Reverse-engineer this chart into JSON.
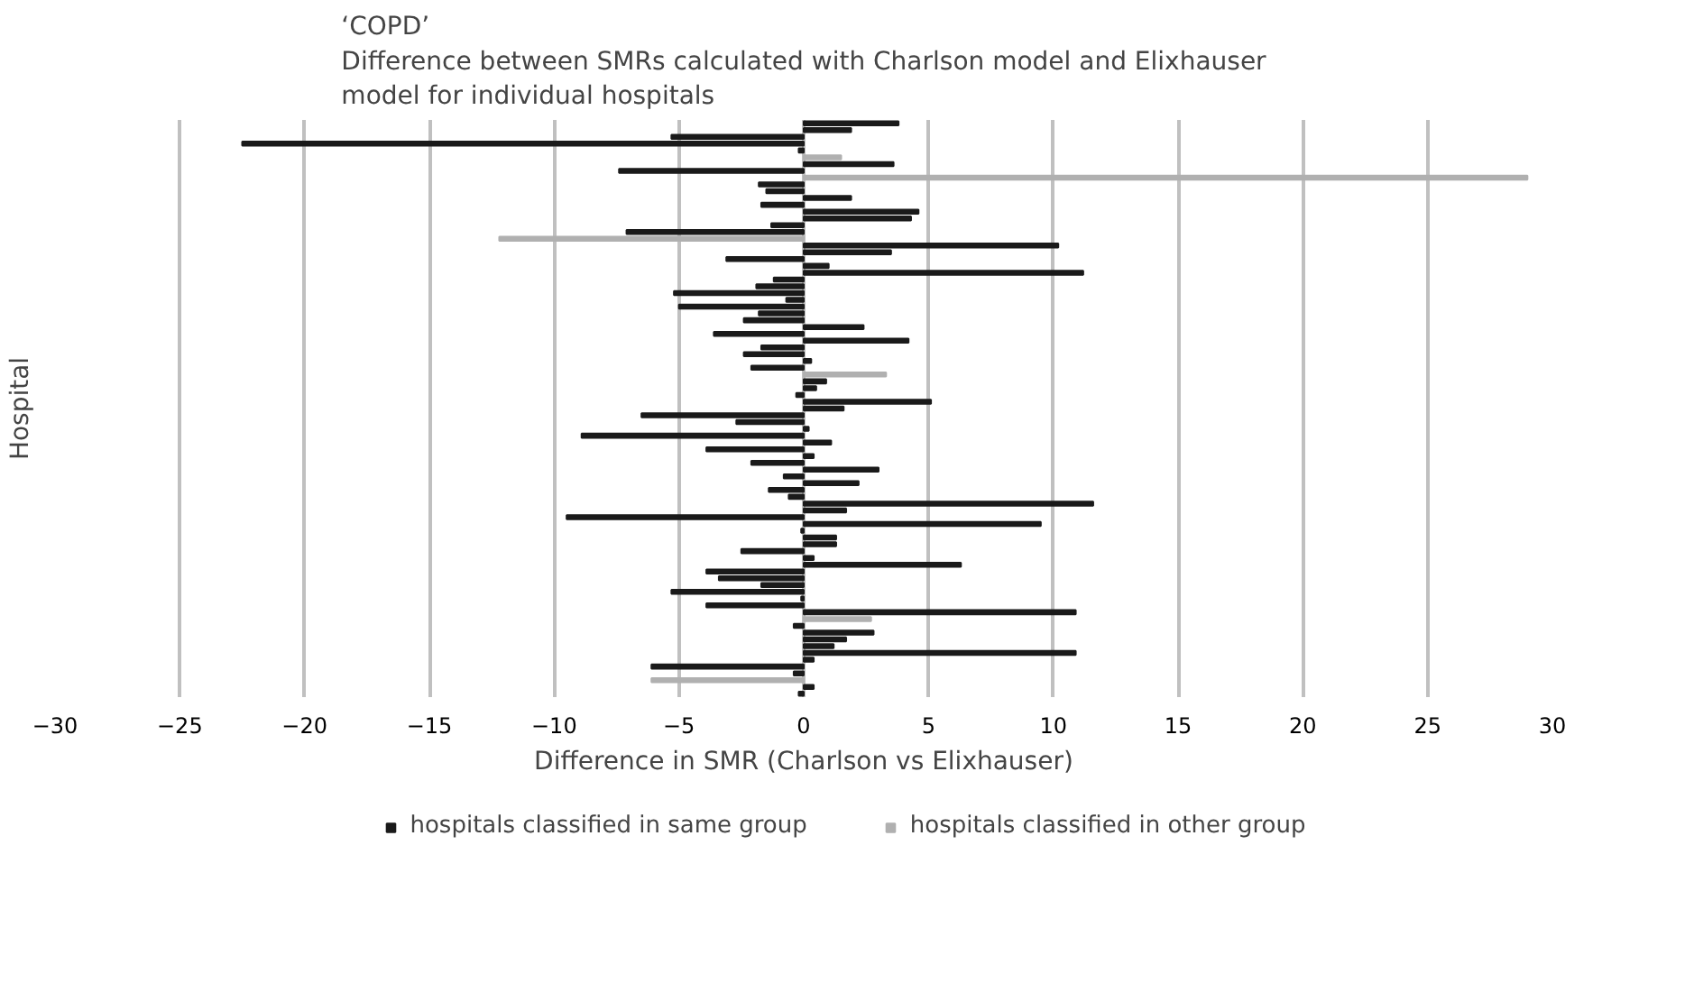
{
  "chart_data": {
    "type": "bar",
    "orientation": "horizontal",
    "title": "‘COPD’\nDifference between SMRs calculated with Charlson model and Elixhauser\nmodel for individual hospitals",
    "xlabel": "Difference in SMR (Charlson vs Elixhauser)",
    "ylabel": "Hospital",
    "categories": [
      null,
      null,
      null,
      null,
      null,
      null,
      null,
      null,
      null,
      null,
      null,
      null,
      null,
      null,
      null,
      null,
      null,
      null,
      null,
      null,
      null,
      null,
      null,
      null,
      null,
      null,
      null,
      null,
      null,
      null,
      null,
      null,
      null,
      null,
      null,
      null,
      null,
      null,
      null,
      null,
      null,
      null,
      null,
      null,
      null,
      null,
      null,
      null,
      null,
      null,
      null,
      null,
      null,
      null,
      null,
      null,
      null,
      null,
      null,
      null,
      null,
      null,
      null,
      null,
      null,
      null,
      null,
      null,
      null,
      null,
      null,
      null,
      null,
      null,
      null,
      null,
      null,
      null,
      null,
      null,
      null,
      null,
      null,
      null,
      null
    ],
    "series": [
      {
        "name": "hospitals classified in same group",
        "color": "#1a1a1a",
        "values": [
          3.8,
          1.9,
          -5.3,
          -22.5,
          -0.2,
          null,
          3.6,
          -7.4,
          null,
          -1.8,
          -1.5,
          1.9,
          -1.7,
          4.6,
          4.3,
          -1.3,
          -7.1,
          null,
          10.2,
          3.5,
          -3.1,
          1.0,
          11.2,
          -1.2,
          -1.9,
          -5.2,
          -0.7,
          -5.0,
          -1.8,
          -2.4,
          2.4,
          -3.6,
          4.2,
          -1.7,
          -2.4,
          0.3,
          -2.1,
          null,
          0.9,
          0.5,
          -0.3,
          5.1,
          1.6,
          -6.5,
          -2.7,
          0.2,
          -8.9,
          1.1,
          -3.9,
          0.4,
          -2.1,
          3.0,
          -0.8,
          2.2,
          -1.4,
          -0.6,
          11.6,
          1.7,
          -9.5,
          9.5,
          -0.1,
          1.3,
          1.3,
          -2.5,
          0.4,
          6.3,
          -3.9,
          -3.4,
          -1.7,
          -5.3,
          -0.1,
          -3.9,
          10.9,
          null,
          -0.4,
          2.8,
          1.7,
          1.2,
          10.9,
          0.4,
          -6.1,
          -0.4,
          null,
          0.4,
          -0.2
        ]
      },
      {
        "name": "hospitals classified in other group",
        "color": "#b0b0b0",
        "values": [
          null,
          null,
          null,
          null,
          null,
          1.5,
          null,
          null,
          29,
          null,
          null,
          null,
          null,
          null,
          null,
          null,
          null,
          -12.2,
          null,
          null,
          null,
          null,
          null,
          null,
          null,
          null,
          null,
          null,
          null,
          null,
          null,
          null,
          null,
          null,
          null,
          null,
          null,
          3.3,
          null,
          null,
          null,
          null,
          null,
          null,
          null,
          null,
          null,
          null,
          null,
          null,
          null,
          null,
          null,
          null,
          null,
          null,
          null,
          null,
          null,
          null,
          null,
          null,
          null,
          null,
          null,
          null,
          null,
          null,
          null,
          null,
          null,
          null,
          null,
          2.7,
          null,
          null,
          null,
          null,
          null,
          null,
          null,
          null,
          -6.1,
          null,
          null
        ]
      }
    ],
    "xlim": [
      -30,
      30
    ],
    "xticks": [
      -30,
      -25,
      -20,
      -15,
      -10,
      -5,
      0,
      5,
      10,
      15,
      20,
      25,
      30
    ],
    "grid": "x",
    "legend": "bottom",
    "tick_labels": "x"
  }
}
